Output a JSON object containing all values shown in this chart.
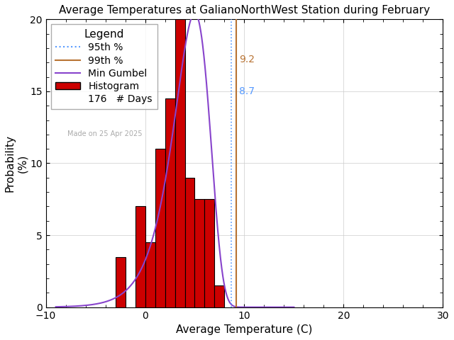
{
  "title": "Average Temperatures at GalianoNorthWest Station during February",
  "xlabel": "Average Temperature (C)",
  "ylabel": "Probability\n(%)",
  "xlim": [
    -10,
    30
  ],
  "ylim": [
    0,
    20
  ],
  "xticks": [
    -10,
    0,
    10,
    20,
    30
  ],
  "yticks": [
    0,
    5,
    10,
    15,
    20
  ],
  "bar_edges": [
    -4,
    -3,
    -2,
    -1,
    0,
    1,
    2,
    3,
    4,
    5,
    6,
    7,
    8,
    9,
    10
  ],
  "bar_heights": [
    0.0,
    3.5,
    0.0,
    7.0,
    4.5,
    11.0,
    14.5,
    20.5,
    9.0,
    7.5,
    7.5,
    1.5,
    0.0,
    0.0
  ],
  "bar_color": "#cc0000",
  "bar_edgecolor": "#000000",
  "percentile_95": 8.7,
  "percentile_99": 9.2,
  "percentile_95_color": "#5599ff",
  "percentile_99_color": "#b87333",
  "n_days": 176,
  "gumbel_mu": 5.0,
  "gumbel_beta": 1.8,
  "gumbel_color": "#8844cc",
  "watermark": "Made on 25 Apr 2025",
  "watermark_color": "#aaaaaa",
  "background_color": "#ffffff",
  "title_fontsize": 11,
  "axis_fontsize": 11,
  "tick_fontsize": 10,
  "legend_fontsize": 10
}
